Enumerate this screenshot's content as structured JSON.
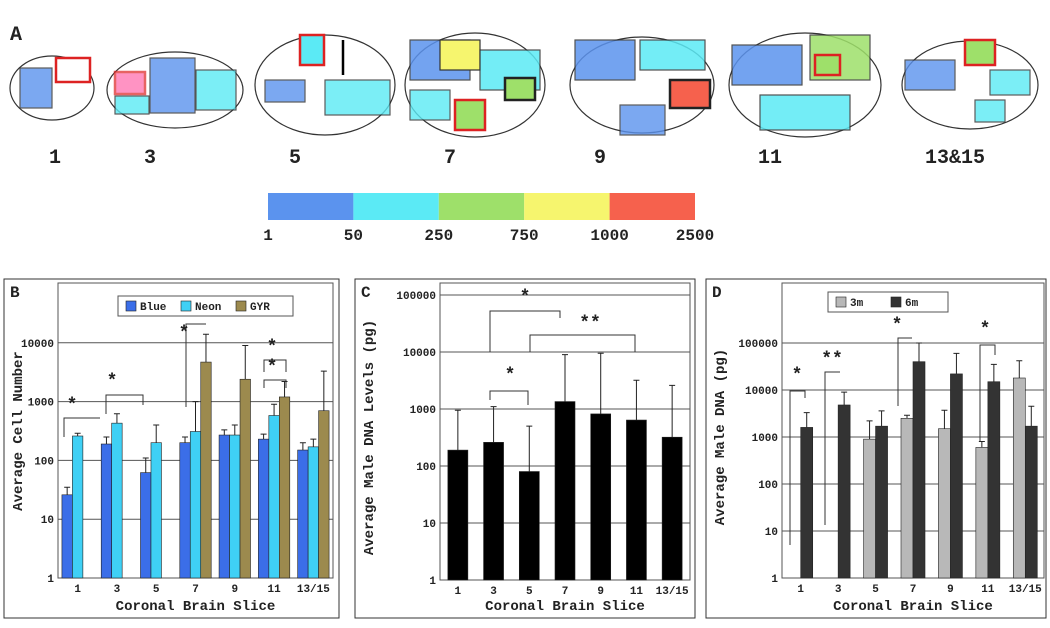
{
  "panel_a": {
    "label": "A",
    "slices": [
      "1",
      "3",
      "5",
      "7",
      "9",
      "11",
      "13&15"
    ],
    "colorbar": {
      "colors": [
        "#5b93ee",
        "#5beaf5",
        "#9ee06a",
        "#f6f56e",
        "#f6614d"
      ],
      "labels": [
        "1",
        "50",
        "250",
        "750",
        "1000",
        "2500"
      ]
    }
  },
  "chart_data": [
    {
      "type": "bar",
      "panel": "B",
      "y_label": "Average Cell Number",
      "x_label": "Coronal Brain Slice",
      "yscale": "log",
      "grid": true,
      "legend": "top",
      "categories": [
        "1",
        "3",
        "5",
        "7",
        "9",
        "11",
        "13/15"
      ],
      "ylim": [
        1,
        100000
      ],
      "yticks": [
        1,
        10,
        100,
        1000,
        10000
      ],
      "series": [
        {
          "name": "Blue",
          "color": "#3b6ee8",
          "values": [
            26,
            190,
            62,
            200,
            270,
            230,
            150
          ],
          "errors": [
            9,
            60,
            48,
            50,
            60,
            50,
            50
          ]
        },
        {
          "name": "Neon",
          "color": "#3fd0f5",
          "values": [
            260,
            430,
            200,
            310,
            270,
            580,
            170
          ],
          "errors": [
            30,
            190,
            200,
            690,
            130,
            320,
            60
          ]
        },
        {
          "name": "GYR",
          "color": "#9c8a4e",
          "values": [
            null,
            null,
            null,
            4700,
            2400,
            1200,
            700
          ],
          "errors": [
            null,
            null,
            null,
            9300,
            6600,
            1000,
            2600
          ]
        }
      ],
      "significance": [
        "*",
        "*",
        "*",
        "*",
        "*"
      ]
    },
    {
      "type": "bar",
      "panel": "C",
      "y_label": "Average Male DNA Levels (pg)",
      "x_label": "Coronal Brain Slice",
      "yscale": "log",
      "grid": true,
      "categories": [
        "1",
        "3",
        "5",
        "7",
        "9",
        "11",
        "13/15"
      ],
      "ylim": [
        1,
        100000
      ],
      "yticks": [
        1,
        10,
        100,
        1000,
        10000,
        100000
      ],
      "series": [
        {
          "color": "#000000",
          "values": [
            190,
            260,
            80,
            1350,
            820,
            640,
            320
          ],
          "errors": [
            760,
            840,
            420,
            7650,
            8680,
            2560,
            2280
          ]
        }
      ],
      "significance": [
        "*",
        "**",
        "*"
      ]
    },
    {
      "type": "bar",
      "panel": "D",
      "y_label": "Average Male DNA (pg)",
      "x_label": "Coronal Brain Slice",
      "yscale": "log",
      "grid": true,
      "legend": "top",
      "categories": [
        "1",
        "3",
        "5",
        "7",
        "9",
        "11",
        "13/15"
      ],
      "ylim": [
        1,
        1000000
      ],
      "yticks": [
        1,
        10,
        100,
        1000,
        10000,
        100000
      ],
      "series": [
        {
          "name": "3m",
          "color": "#b8b8b8",
          "values": [
            null,
            null,
            900,
            2500,
            1500,
            600,
            18000
          ],
          "errors": [
            null,
            null,
            1300,
            400,
            2200,
            200,
            24000
          ]
        },
        {
          "name": "6m",
          "color": "#333333",
          "values": [
            1600,
            4800,
            1700,
            40000,
            22000,
            15000,
            1700
          ],
          "errors": [
            1700,
            4200,
            1900,
            60000,
            38000,
            20000,
            2800
          ]
        }
      ],
      "significance": [
        "*",
        "**",
        "*",
        "*"
      ]
    }
  ]
}
